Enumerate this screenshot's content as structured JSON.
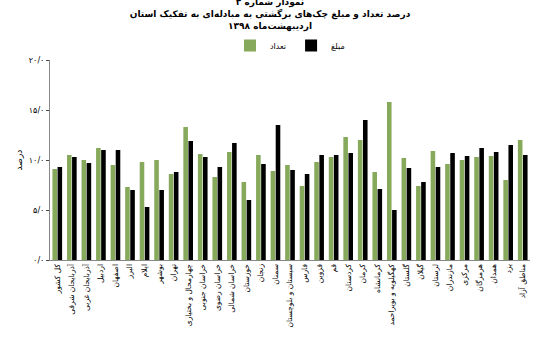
{
  "chart_data": {
    "type": "bar",
    "title": "نمودار شماره ۳",
    "subtitle": [
      "درصد تعداد و مبلغ چک‌های برگشتی به مبادله‌ای به تفکیک استان",
      "اردیبهشت‌ماه ۱۳۹۸"
    ],
    "y_label": "درصد",
    "categories": [
      "کل کشور",
      "آذربایجان شرقی",
      "آذربایجان غربی",
      "اردبیل",
      "اصفهان",
      "البرز",
      "ایلام",
      "بوشهر",
      "تهران",
      "چهارمحال و بختیاری",
      "خراسان جنوبی",
      "خراسان رضوی",
      "خراسان شمالی",
      "خوزستان",
      "زنجان",
      "سمنان",
      "سیستان و بلوچستان",
      "فارس",
      "قزوین",
      "قم",
      "کردستان",
      "کرمان",
      "کرمانشاه",
      "کهگیلویه و بویراحمد",
      "گلستان",
      "گیلان",
      "لرستان",
      "مازندران",
      "مرکزی",
      "هرمزگان",
      "همدان",
      "یزد",
      "مناطق آزاد"
    ],
    "series": [
      {
        "name": "تعداد",
        "color": "#86a95b",
        "values": [
          9.1,
          10.5,
          10.0,
          11.2,
          9.5,
          7.3,
          9.8,
          10.0,
          8.6,
          13.3,
          10.6,
          8.3,
          10.8,
          7.8,
          10.5,
          8.9,
          9.5,
          7.4,
          9.8,
          10.3,
          12.3,
          12.0,
          8.8,
          15.8,
          10.2,
          7.4,
          10.9,
          9.6,
          10.0,
          10.3,
          10.4,
          8.0,
          12.0
        ]
      },
      {
        "name": "مبلغ",
        "color": "#000000",
        "values": [
          9.3,
          10.3,
          9.7,
          11.0,
          11.0,
          7.0,
          5.3,
          7.0,
          8.8,
          11.9,
          10.3,
          9.3,
          11.7,
          6.0,
          9.6,
          13.5,
          9.0,
          8.6,
          10.5,
          10.5,
          10.7,
          14.0,
          7.1,
          5.0,
          9.2,
          7.8,
          9.3,
          10.7,
          10.4,
          11.2,
          10.8,
          11.5,
          10.5
        ]
      }
    ],
    "ylim": [
      0,
      20
    ],
    "yticks": [
      {
        "value": 0,
        "label": "۰/۰"
      },
      {
        "value": 5,
        "label": "۵/۰"
      },
      {
        "value": 10,
        "label": "۱۰/۰"
      },
      {
        "value": 15,
        "label": "۱۵/۰"
      },
      {
        "value": 20,
        "label": "۲۰/۰"
      }
    ],
    "grid": false,
    "legend": "top"
  }
}
